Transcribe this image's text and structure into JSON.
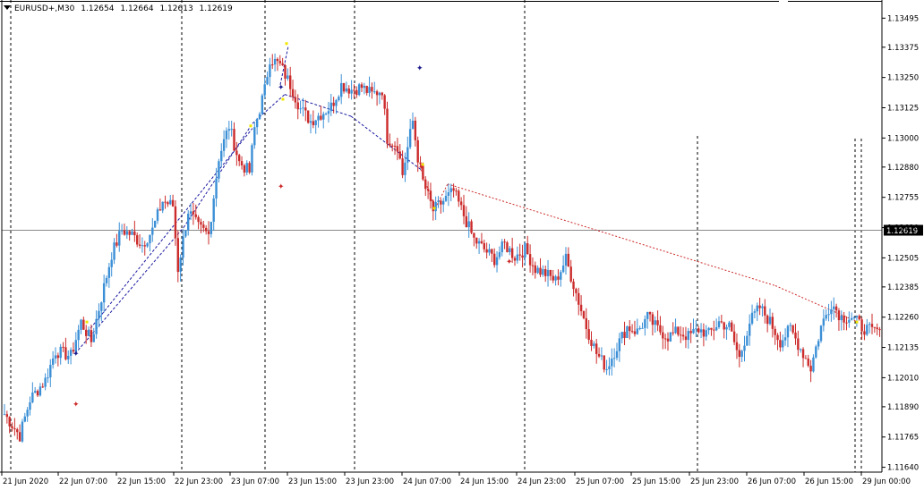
{
  "header": {
    "symbol": "EURUSD+,M30",
    "open": "1.12654",
    "high": "1.12664",
    "low": "1.12613",
    "close": "1.12619"
  },
  "colors": {
    "background": "#ffffff",
    "bull": "#3b8fd6",
    "bear": "#cc2b2b",
    "current_line": "#8a8a8a",
    "blue_dash": "#1a1aa0",
    "red_dot": "#cc2b2b",
    "marker_yellow": "#f2e600",
    "marker_navy": "#1a1a8c"
  },
  "chart_data": {
    "type": "candlestick",
    "symbol": "EURUSD+",
    "timeframe": "M30",
    "ylim": [
      1.1162,
      1.1357
    ],
    "price_ticks": [
      "1.13495",
      "1.13375",
      "1.13250",
      "1.13125",
      "1.13000",
      "1.12880",
      "1.12755",
      "1.12630",
      "1.12505",
      "1.12385",
      "1.12260",
      "1.12135",
      "1.12010",
      "1.11890",
      "1.11765",
      "1.11640"
    ],
    "current_price": "1.12619",
    "time_labels": [
      "21 Jun 2020",
      "22 Jun 07:00",
      "22 Jun 15:00",
      "22 Jun 23:00",
      "23 Jun 07:00",
      "23 Jun 15:00",
      "23 Jun 23:00",
      "24 Jun 07:00",
      "24 Jun 15:00",
      "24 Jun 23:00",
      "25 Jun 07:00",
      "25 Jun 15:00",
      "25 Jun 23:00",
      "26 Jun 07:00",
      "26 Jun 15:00",
      "29 Jun 00:00"
    ],
    "grid": false,
    "close_path": [
      [
        0,
        1.1186
      ],
      [
        6,
        1.1177
      ],
      [
        10,
        1.1192
      ],
      [
        16,
        1.12
      ],
      [
        20,
        1.1212
      ],
      [
        26,
        1.121
      ],
      [
        30,
        1.1224
      ],
      [
        34,
        1.1216
      ],
      [
        38,
        1.1234
      ],
      [
        42,
        1.1252
      ],
      [
        46,
        1.1262
      ],
      [
        50,
        1.126
      ],
      [
        54,
        1.1256
      ],
      [
        58,
        1.1262
      ],
      [
        62,
        1.1274
      ],
      [
        66,
        1.1272
      ],
      [
        68,
        1.1246
      ],
      [
        72,
        1.127
      ],
      [
        76,
        1.1263
      ],
      [
        80,
        1.126
      ],
      [
        84,
        1.1292
      ],
      [
        88,
        1.1305
      ],
      [
        92,
        1.129
      ],
      [
        96,
        1.1286
      ],
      [
        98,
        1.1304
      ],
      [
        102,
        1.132
      ],
      [
        104,
        1.1333
      ],
      [
        108,
        1.133
      ],
      [
        112,
        1.1322
      ],
      [
        116,
        1.1312
      ],
      [
        120,
        1.1307
      ],
      [
        124,
        1.131
      ],
      [
        128,
        1.1313
      ],
      [
        132,
        1.1322
      ],
      [
        136,
        1.132
      ],
      [
        140,
        1.1321
      ],
      [
        144,
        1.1318
      ],
      [
        148,
        1.132
      ],
      [
        150,
        1.13
      ],
      [
        154,
        1.1297
      ],
      [
        156,
        1.1285
      ],
      [
        160,
        1.1307
      ],
      [
        162,
        1.1292
      ],
      [
        164,
        1.1282
      ],
      [
        168,
        1.127
      ],
      [
        172,
        1.1274
      ],
      [
        176,
        1.1278
      ],
      [
        180,
        1.1268
      ],
      [
        184,
        1.1258
      ],
      [
        188,
        1.1254
      ],
      [
        192,
        1.125
      ],
      [
        196,
        1.1256
      ],
      [
        200,
        1.1251
      ],
      [
        204,
        1.1254
      ],
      [
        208,
        1.1246
      ],
      [
        212,
        1.1244
      ],
      [
        216,
        1.1241
      ],
      [
        220,
        1.125
      ],
      [
        224,
        1.1236
      ],
      [
        228,
        1.1222
      ],
      [
        232,
        1.1211
      ],
      [
        236,
        1.1205
      ],
      [
        240,
        1.1214
      ],
      [
        244,
        1.1222
      ],
      [
        248,
        1.122
      ],
      [
        252,
        1.1226
      ],
      [
        256,
        1.1221
      ],
      [
        260,
        1.1218
      ],
      [
        264,
        1.122
      ],
      [
        268,
        1.1218
      ],
      [
        272,
        1.1221
      ],
      [
        276,
        1.1219
      ],
      [
        280,
        1.1224
      ],
      [
        284,
        1.1222
      ],
      [
        288,
        1.1209
      ],
      [
        292,
        1.1224
      ],
      [
        296,
        1.123
      ],
      [
        300,
        1.1224
      ],
      [
        304,
        1.1216
      ],
      [
        308,
        1.1221
      ],
      [
        312,
        1.1213
      ],
      [
        316,
        1.1205
      ],
      [
        320,
        1.1222
      ],
      [
        324,
        1.1232
      ],
      [
        328,
        1.1226
      ],
      [
        332,
        1.1226
      ],
      [
        336,
        1.1222
      ],
      [
        340,
        1.122
      ],
      [
        343,
        1.1221
      ]
    ],
    "vlines_idx": [
      4,
      100,
      148,
      196,
      292,
      364,
      376,
      380
    ],
    "zigzag_blue": [
      [
        80,
        1.1211
      ],
      [
        150,
        1.1263
      ],
      [
        190,
        1.1306
      ],
      [
        198,
        1.1325
      ],
      [
        250,
        1.1307
      ],
      [
        290,
        1.1287
      ]
    ],
    "zigzag_red": [
      [
        280,
        1.1287
      ],
      [
        290,
        1.1271
      ],
      [
        300,
        1.1281
      ],
      [
        590,
        1.124
      ],
      [
        960,
        1.1224
      ]
    ]
  }
}
